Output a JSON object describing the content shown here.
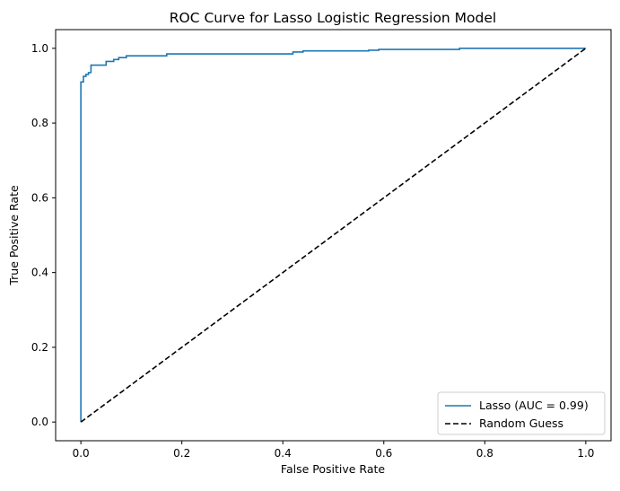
{
  "chart_data": {
    "type": "line",
    "title": "ROC Curve for Lasso Logistic Regression Model",
    "xlabel": "False Positive Rate",
    "ylabel": "True Positive Rate",
    "xlim": [
      -0.05,
      1.05
    ],
    "ylim": [
      -0.05,
      1.05
    ],
    "xticks": [
      "0.0",
      "0.2",
      "0.4",
      "0.6",
      "0.8",
      "1.0"
    ],
    "yticks": [
      "0.0",
      "0.2",
      "0.4",
      "0.6",
      "0.8",
      "1.0"
    ],
    "grid": false,
    "legend_position": "lower-right",
    "series": [
      {
        "name": "Lasso (AUC = 0.99)",
        "color": "#1f77b4",
        "style": "solid",
        "x": [
          0.0,
          0.0,
          0.005,
          0.005,
          0.01,
          0.01,
          0.015,
          0.015,
          0.02,
          0.02,
          0.03,
          0.03,
          0.05,
          0.05,
          0.065,
          0.065,
          0.075,
          0.075,
          0.09,
          0.09,
          0.17,
          0.17,
          0.42,
          0.42,
          0.44,
          0.44,
          0.57,
          0.57,
          0.59,
          0.59,
          0.75,
          0.75,
          1.0
        ],
        "y": [
          0.0,
          0.91,
          0.91,
          0.925,
          0.925,
          0.93,
          0.93,
          0.935,
          0.935,
          0.955,
          0.955,
          0.955,
          0.955,
          0.965,
          0.965,
          0.97,
          0.97,
          0.975,
          0.975,
          0.98,
          0.98,
          0.985,
          0.985,
          0.99,
          0.99,
          0.993,
          0.993,
          0.995,
          0.995,
          0.997,
          0.997,
          1.0,
          1.0
        ]
      },
      {
        "name": "Random Guess",
        "color": "#000000",
        "style": "dashed",
        "x": [
          0.0,
          1.0
        ],
        "y": [
          0.0,
          1.0
        ]
      }
    ]
  }
}
